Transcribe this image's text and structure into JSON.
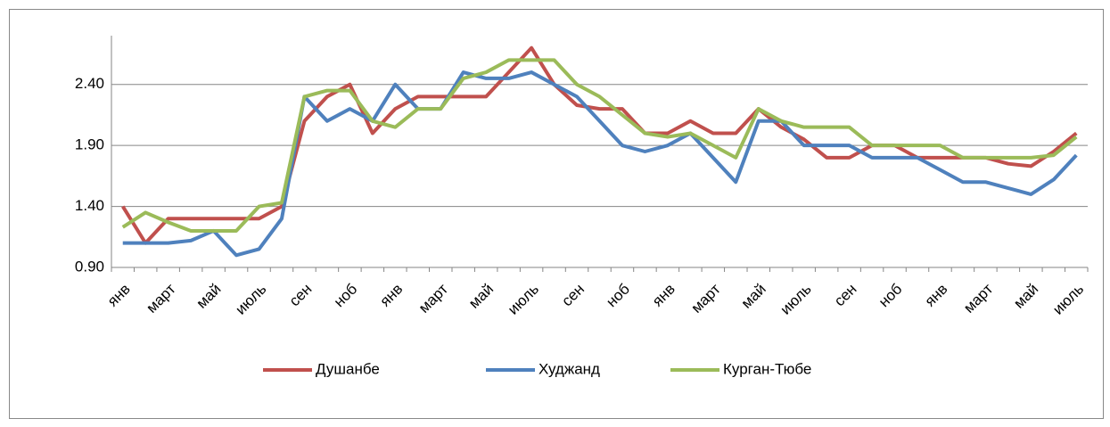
{
  "chart_data": {
    "type": "line",
    "categories": [
      "янв",
      null,
      "март",
      null,
      "май",
      null,
      "июль",
      null,
      "сен",
      null,
      "ноб",
      null,
      "янв",
      null,
      "март",
      null,
      "май",
      null,
      "июль",
      null,
      "сен",
      null,
      "ноб",
      null,
      "янв",
      null,
      "март",
      null,
      "май",
      null,
      "июль",
      null,
      "сен",
      null,
      "ноб",
      null,
      "янв",
      null,
      "март",
      null,
      "май",
      null,
      "июль"
    ],
    "series": [
      {
        "name": "Душанбе",
        "color": "#c0504d",
        "values": [
          1.4,
          1.1,
          1.3,
          1.3,
          1.3,
          1.3,
          1.3,
          1.4,
          2.1,
          2.3,
          2.4,
          2.0,
          2.2,
          2.3,
          2.3,
          2.3,
          2.3,
          2.5,
          2.7,
          2.4,
          2.23,
          2.2,
          2.2,
          2.0,
          2.0,
          2.1,
          2.0,
          2.0,
          2.2,
          2.05,
          1.95,
          1.8,
          1.8,
          1.9,
          1.9,
          1.8,
          1.8,
          1.8,
          1.8,
          1.75,
          1.73,
          1.85,
          2.0
        ]
      },
      {
        "name": "Худжанд",
        "color": "#4f81bd",
        "values": [
          1.1,
          1.1,
          1.1,
          1.12,
          1.2,
          1.0,
          1.05,
          1.3,
          2.3,
          2.1,
          2.2,
          2.1,
          2.4,
          2.2,
          2.2,
          2.5,
          2.45,
          2.45,
          2.5,
          2.4,
          2.3,
          2.1,
          1.9,
          1.85,
          1.9,
          2.0,
          1.8,
          1.6,
          2.1,
          2.1,
          1.9,
          1.9,
          1.9,
          1.8,
          1.8,
          1.8,
          1.7,
          1.6,
          1.6,
          1.55,
          1.5,
          1.62,
          1.82
        ]
      },
      {
        "name": "Курган-Тюбе",
        "color": "#9bbb59",
        "values": [
          1.23,
          1.35,
          1.27,
          1.2,
          1.2,
          1.2,
          1.4,
          1.43,
          2.3,
          2.35,
          2.35,
          2.1,
          2.05,
          2.2,
          2.2,
          2.45,
          2.5,
          2.6,
          2.6,
          2.6,
          2.4,
          2.3,
          2.15,
          2.0,
          1.97,
          2.0,
          1.9,
          1.8,
          2.2,
          2.1,
          2.05,
          2.05,
          2.05,
          1.9,
          1.9,
          1.9,
          1.9,
          1.8,
          1.8,
          1.8,
          1.8,
          1.82,
          1.97
        ]
      }
    ],
    "ylim": [
      0.9,
      2.8
    ],
    "yticks": [
      {
        "value": 0.9,
        "label": "0.90"
      },
      {
        "value": 1.4,
        "label": "1.40"
      },
      {
        "value": 1.9,
        "label": "1.90"
      },
      {
        "value": 2.4,
        "label": "2.40"
      }
    ],
    "grid": true,
    "legend": "bottom"
  }
}
